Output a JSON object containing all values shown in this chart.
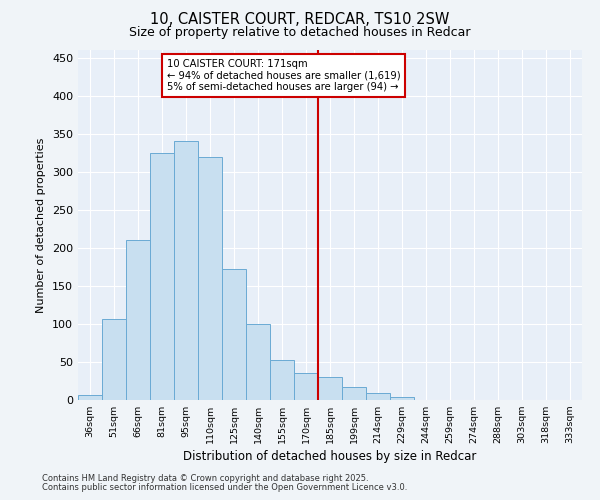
{
  "title_line1": "10, CAISTER COURT, REDCAR, TS10 2SW",
  "title_line2": "Size of property relative to detached houses in Redcar",
  "xlabel": "Distribution of detached houses by size in Redcar",
  "ylabel": "Number of detached properties",
  "bar_labels": [
    "36sqm",
    "51sqm",
    "66sqm",
    "81sqm",
    "95sqm",
    "110sqm",
    "125sqm",
    "140sqm",
    "155sqm",
    "170sqm",
    "185sqm",
    "199sqm",
    "214sqm",
    "229sqm",
    "244sqm",
    "259sqm",
    "274sqm",
    "288sqm",
    "303sqm",
    "318sqm",
    "333sqm"
  ],
  "bar_heights": [
    6,
    107,
    210,
    325,
    340,
    320,
    172,
    100,
    52,
    35,
    30,
    17,
    9,
    4,
    0,
    0,
    0,
    0,
    0,
    0,
    0
  ],
  "bar_color": "#c8dff0",
  "bar_edge_color": "#6aaad4",
  "vline_x_index": 9,
  "vline_color": "#cc0000",
  "annotation_title": "10 CAISTER COURT: 171sqm",
  "annotation_line2": "← 94% of detached houses are smaller (1,619)",
  "annotation_line3": "5% of semi-detached houses are larger (94) →",
  "annotation_box_color": "#cc0000",
  "ylim": [
    0,
    460
  ],
  "yticks": [
    0,
    50,
    100,
    150,
    200,
    250,
    300,
    350,
    400,
    450
  ],
  "footer_line1": "Contains HM Land Registry data © Crown copyright and database right 2025.",
  "footer_line2": "Contains public sector information licensed under the Open Government Licence v3.0.",
  "bg_color": "#f0f4f8",
  "plot_bg_color": "#e8eff8",
  "grid_color": "#ffffff"
}
